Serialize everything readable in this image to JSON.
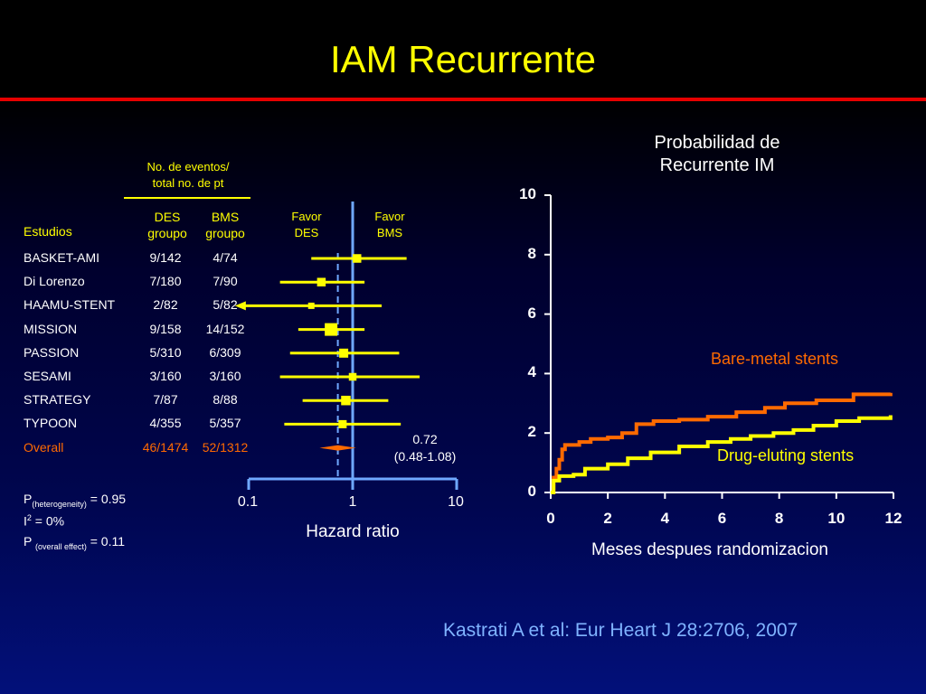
{
  "slide": {
    "title": "IAM Recurrente",
    "citation": "Kastrati A et al:  Eur Heart J 28:2706, 2007"
  },
  "forest": {
    "events_header_line1": "No. de eventos/",
    "events_header_line2": "total no. de pt",
    "studies_header": "Estudios",
    "des_header_line1": "DES",
    "des_header_line2": "groupo",
    "bms_header_line1": "BMS",
    "bms_header_line2": "groupo",
    "favor_des_line1": "Favor",
    "favor_des_line2": "DES",
    "favor_bms_line1": "Favor",
    "favor_bms_line2": "BMS",
    "overall_value": "0.72",
    "overall_ci": "(0.48-1.08)",
    "xlabel": "Hazard ratio",
    "ticks": [
      "0.1",
      "1",
      "10"
    ],
    "stats": {
      "p_het_prefix": "P",
      "p_het_sub": "(heterogeneity)",
      "p_het_value": "= 0.95",
      "i2_prefix": "I",
      "i2_sup": "2",
      "i2_value": "= 0%",
      "p_overall_prefix": "P",
      "p_overall_sub": "(overall effect)",
      "p_overall_value": "= 0.11"
    }
  },
  "km": {
    "title_line1": "Probabilidad de",
    "title_line2": "Recurrente IM",
    "xlabel": "Meses despues randomizacion",
    "bare_label": "Bare-metal stents",
    "drug_label": "Drug-eluting stents"
  },
  "colors": {
    "title": "#ffff00",
    "rule": "#e60000",
    "bare": "#ff6a00",
    "drug": "#ffff00",
    "axis_blue": "#6fa8ff",
    "citation": "#7fb3ff"
  },
  "chart_data": [
    {
      "type": "forest",
      "xlabel": "Hazard ratio",
      "scale": "log",
      "xlim": [
        0.1,
        10
      ],
      "x_ticks": [
        0.1,
        1,
        10
      ],
      "pooled_reference_line": 0.72,
      "studies": [
        {
          "name": "BASKET-AMI",
          "des": "9/142",
          "bms": "4/74",
          "hr": 1.1,
          "ci": [
            0.4,
            3.3
          ],
          "weight": 0.55
        },
        {
          "name": "Di Lorenzo",
          "des": "7/180",
          "bms": "7/90",
          "hr": 0.5,
          "ci": [
            0.2,
            1.3
          ],
          "weight": 0.55
        },
        {
          "name": "HAAMU-STENT",
          "des": "2/82",
          "bms": "5/82",
          "hr": 0.4,
          "ci": [
            0.08,
            1.9
          ],
          "weight": 0.3,
          "lower_arrow": true
        },
        {
          "name": "MISSION",
          "des": "9/158",
          "bms": "14/152",
          "hr": 0.62,
          "ci": [
            0.3,
            1.3
          ],
          "weight": 1.0
        },
        {
          "name": "PASSION",
          "des": "5/310",
          "bms": "6/309",
          "hr": 0.82,
          "ci": [
            0.25,
            2.8
          ],
          "weight": 0.6
        },
        {
          "name": "SESAMI",
          "des": "3/160",
          "bms": "3/160",
          "hr": 1.0,
          "ci": [
            0.2,
            4.4
          ],
          "weight": 0.45
        },
        {
          "name": "STRATEGY",
          "des": "7/87",
          "bms": "8/88",
          "hr": 0.86,
          "ci": [
            0.33,
            2.2
          ],
          "weight": 0.65
        },
        {
          "name": "TYPOON",
          "des": "4/355",
          "bms": "5/357",
          "hr": 0.8,
          "ci": [
            0.22,
            2.9
          ],
          "weight": 0.5
        }
      ],
      "overall": {
        "name": "Overall",
        "des": "46/1474",
        "bms": "52/1312",
        "hr": 0.72,
        "ci": [
          0.48,
          1.08
        ]
      }
    },
    {
      "type": "line",
      "title": "Probabilidad de Recurrente IM",
      "xlabel": "Meses despues randomizacion",
      "ylabel": "",
      "xlim": [
        0,
        12
      ],
      "ylim": [
        0,
        10
      ],
      "x_ticks": [
        0,
        2,
        4,
        6,
        8,
        10,
        12
      ],
      "y_ticks": [
        0,
        2,
        4,
        6,
        8,
        10
      ],
      "series": [
        {
          "name": "Bare-metal stents",
          "x": [
            0,
            0.1,
            0.2,
            0.3,
            0.4,
            0.5,
            1.0,
            1.4,
            2.0,
            2.5,
            3.0,
            3.6,
            4.5,
            5.5,
            6.5,
            7.5,
            8.2,
            9.3,
            10.6,
            11.9
          ],
          "y": [
            0,
            0.5,
            0.8,
            1.1,
            1.45,
            1.6,
            1.7,
            1.8,
            1.85,
            2.0,
            2.3,
            2.4,
            2.45,
            2.55,
            2.7,
            2.85,
            3.0,
            3.1,
            3.3,
            3.35
          ]
        },
        {
          "name": "Drug-eluting stents",
          "x": [
            0,
            0.1,
            0.3,
            0.8,
            1.2,
            2.0,
            2.7,
            3.5,
            4.5,
            5.5,
            6.3,
            7.0,
            7.8,
            8.5,
            9.2,
            10.0,
            10.8,
            11.9
          ],
          "y": [
            0,
            0.4,
            0.55,
            0.6,
            0.8,
            0.95,
            1.15,
            1.35,
            1.55,
            1.7,
            1.8,
            1.9,
            2.0,
            2.1,
            2.25,
            2.4,
            2.5,
            2.6
          ]
        }
      ]
    }
  ]
}
